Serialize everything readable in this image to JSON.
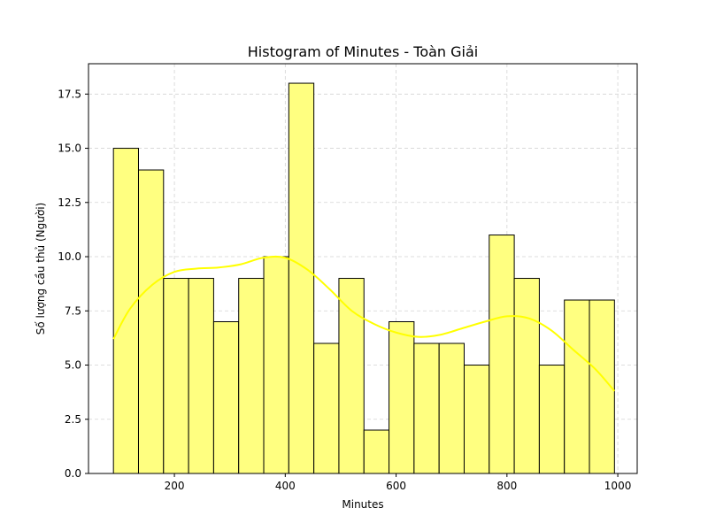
{
  "chart_data": {
    "type": "bar",
    "title": "Histogram of Minutes - Toàn Giải",
    "xlabel": "Minutes",
    "ylabel": "Số lượng cầu thủ (Người)",
    "xlim": [
      45,
      1035
    ],
    "ylim": [
      0,
      18.9
    ],
    "grid": true,
    "bin_edges": [
      90,
      135.2,
      180.4,
      225.6,
      270.8,
      316,
      361.2,
      406.4,
      451.6,
      496.8,
      542,
      587.2,
      632.4,
      677.6,
      722.8,
      768,
      813.2,
      858.4,
      903.6,
      948.8,
      994
    ],
    "values": [
      15,
      14,
      9,
      9,
      7,
      9,
      10,
      18,
      6,
      9,
      2,
      7,
      6,
      6,
      5,
      11,
      9,
      5,
      8,
      8
    ],
    "x_ticks": [
      200,
      400,
      600,
      800,
      1000
    ],
    "x_tick_labels": [
      "200",
      "400",
      "600",
      "800",
      "1000"
    ],
    "y_ticks": [
      0,
      2.5,
      5,
      7.5,
      10,
      12.5,
      15,
      17.5
    ],
    "y_tick_labels": [
      "0.0",
      "2.5",
      "5.0",
      "7.5",
      "10.0",
      "12.5",
      "15.0",
      "17.5"
    ],
    "kde": {
      "name": "KDE",
      "x": [
        90,
        120,
        160,
        200,
        240,
        280,
        320,
        360,
        400,
        440,
        480,
        520,
        560,
        600,
        640,
        680,
        720,
        760,
        800,
        840,
        880,
        920,
        960,
        994
      ],
      "y": [
        6.2,
        7.6,
        8.7,
        9.3,
        9.45,
        9.5,
        9.65,
        9.95,
        9.95,
        9.4,
        8.5,
        7.5,
        6.9,
        6.5,
        6.3,
        6.4,
        6.7,
        7.0,
        7.25,
        7.15,
        6.6,
        5.7,
        4.8,
        3.8
      ]
    },
    "colors": {
      "bar_fill": "#ffff80",
      "bar_edge": "#000000",
      "kde_line": "#ffff00",
      "grid": "#d3d3d3"
    }
  }
}
